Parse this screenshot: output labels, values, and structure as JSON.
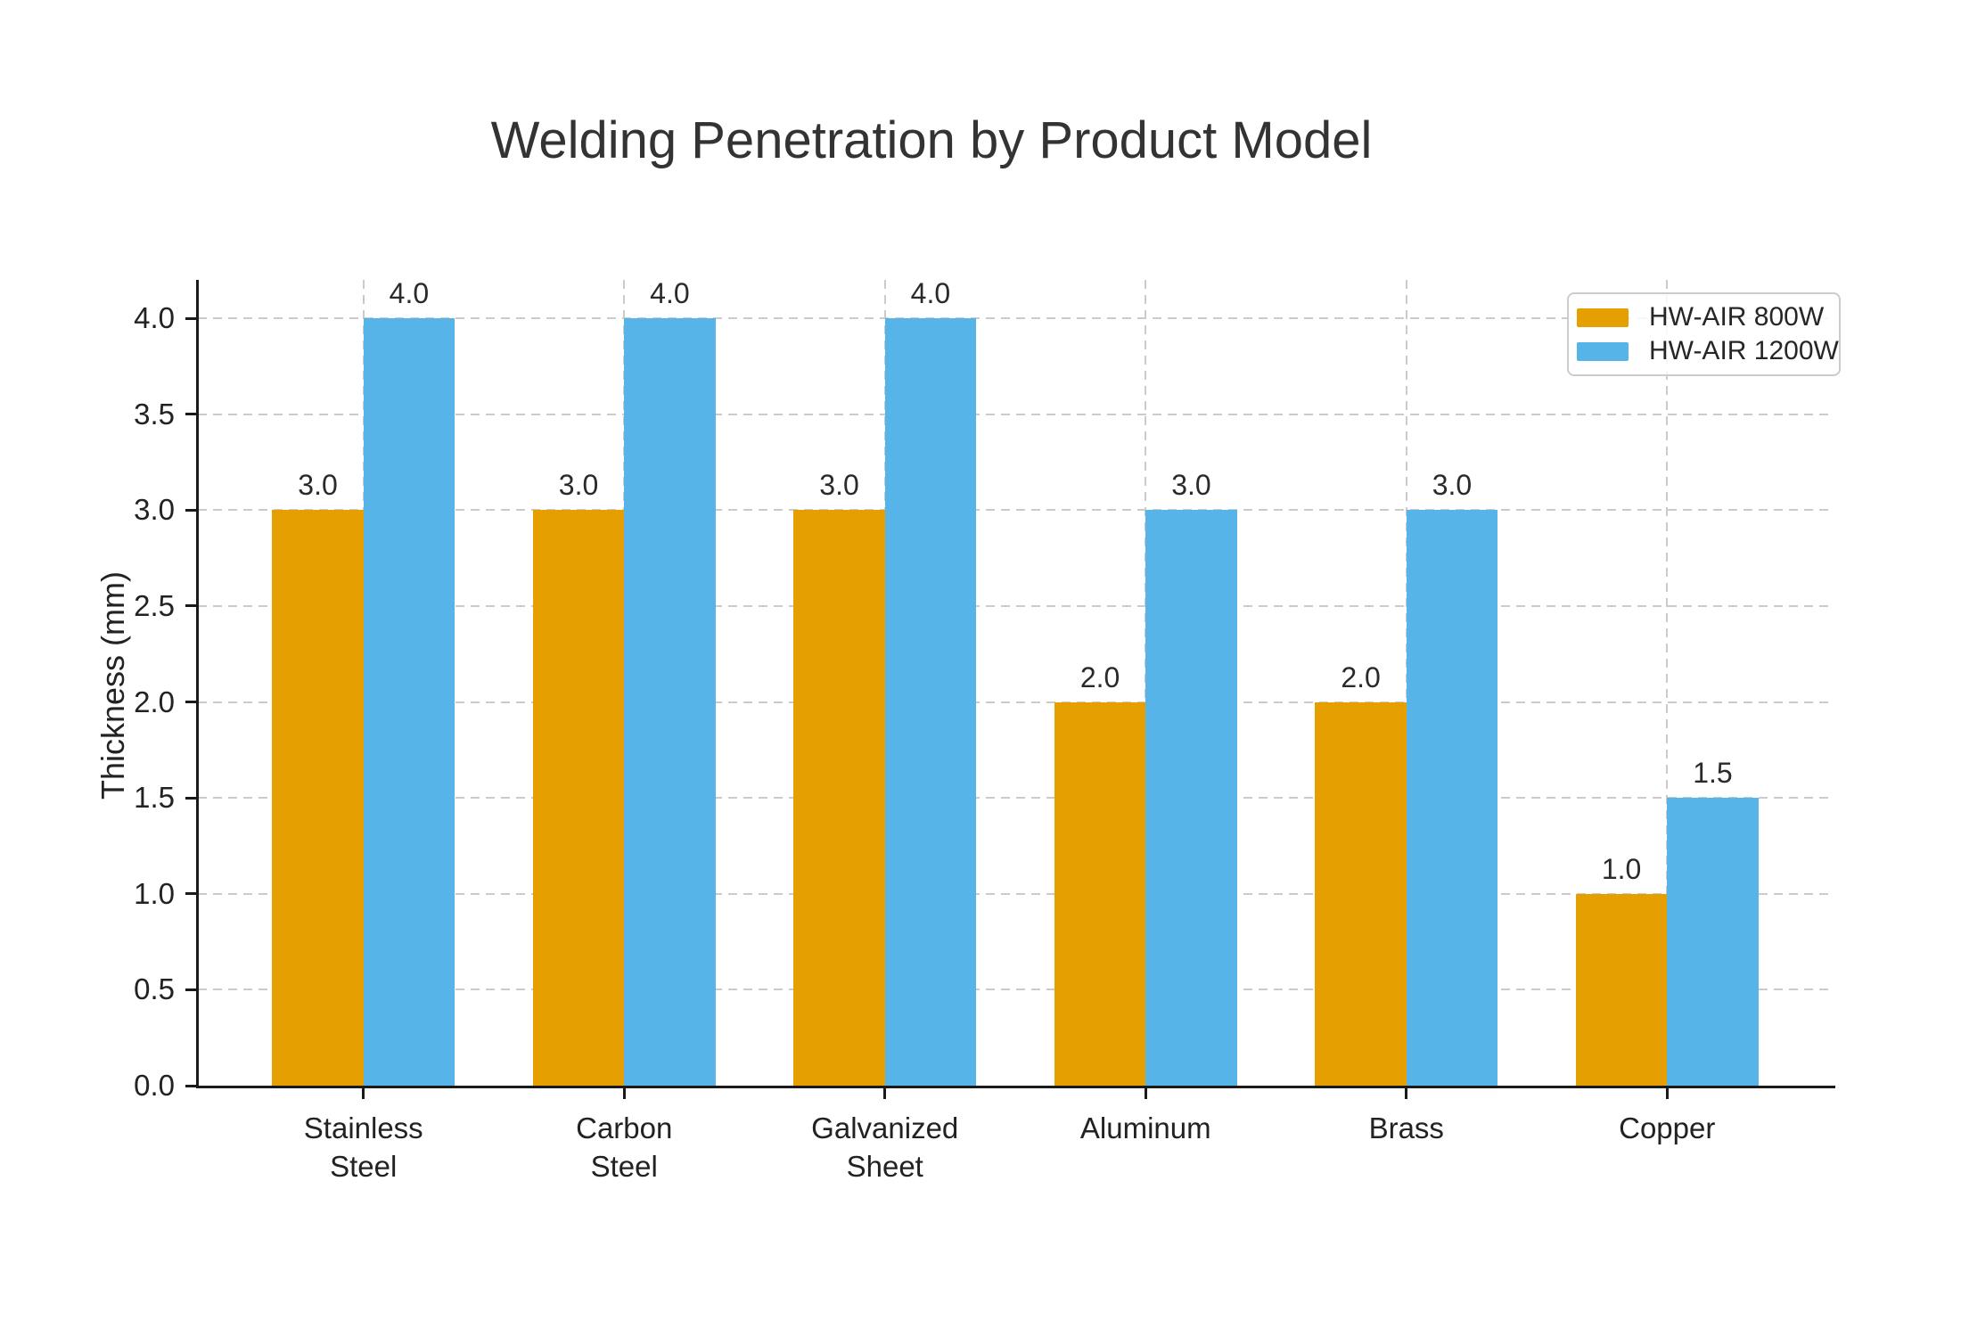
{
  "chart_data": {
    "type": "bar",
    "title": "Welding Penetration by Product Model",
    "ylabel": "Thickness (mm)",
    "xlabel": "",
    "categories": [
      "Stainless Steel",
      "Carbon Steel",
      "Galvanized Sheet",
      "Aluminum",
      "Brass",
      "Copper"
    ],
    "category_display_lines": [
      [
        "Stainless",
        "Steel"
      ],
      [
        "Carbon",
        "Steel"
      ],
      [
        "Galvanized",
        "Sheet"
      ],
      [
        "Aluminum"
      ],
      [
        "Brass"
      ],
      [
        "Copper"
      ]
    ],
    "series": [
      {
        "name": "HW-AIR 800W",
        "color": "#E69F00",
        "values": [
          3.0,
          3.0,
          3.0,
          2.0,
          2.0,
          1.0
        ]
      },
      {
        "name": "HW-AIR 1200W",
        "color": "#56B4E9",
        "values": [
          4.0,
          4.0,
          4.0,
          3.0,
          3.0,
          1.5
        ]
      }
    ],
    "bar_value_labels": [
      [
        "3.0",
        "3.0",
        "3.0",
        "2.0",
        "2.0",
        "1.0"
      ],
      [
        "4.0",
        "4.0",
        "4.0",
        "3.0",
        "3.0",
        "1.5"
      ]
    ],
    "ylim": [
      0,
      4.2
    ],
    "yticks": [
      0.0,
      0.5,
      1.0,
      1.5,
      2.0,
      2.5,
      3.0,
      3.5,
      4.0
    ],
    "ytick_labels": [
      "0.0",
      "0.5",
      "1.0",
      "1.5",
      "2.0",
      "2.5",
      "3.0",
      "3.5",
      "4.0"
    ],
    "grid": true,
    "grid_style": "dashed",
    "legend_position": "upper right",
    "bar_width_units": 0.35
  }
}
